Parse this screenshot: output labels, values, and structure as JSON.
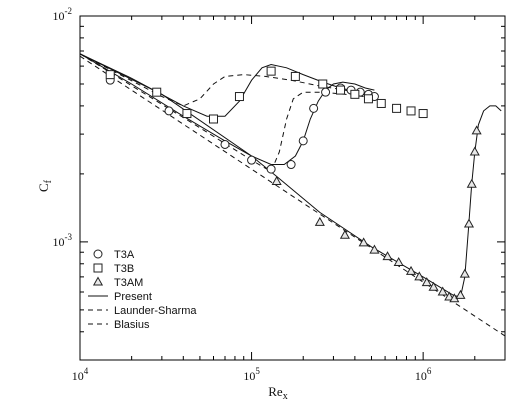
{
  "chart_data": {
    "type": "line",
    "x_scale": "log",
    "y_scale": "log",
    "xlim": [
      10000,
      3000000
    ],
    "ylim": [
      0.0003,
      0.01
    ],
    "x_ticks": [
      {
        "value": 10000,
        "base": "10",
        "exp": "4"
      },
      {
        "value": 100000,
        "base": "10",
        "exp": "5"
      },
      {
        "value": 1000000,
        "base": "10",
        "exp": "6"
      }
    ],
    "y_ticks": [
      {
        "value": 0.001,
        "base": "10",
        "exp": "-3"
      },
      {
        "value": 0.01,
        "base": "10",
        "exp": "-2"
      }
    ],
    "xlabel": {
      "main": "Re",
      "sub": "x"
    },
    "ylabel": {
      "main": "C",
      "sub": "f"
    },
    "legend_position": "bottom-left",
    "series": [
      {
        "name": "T3A",
        "kind": "markers",
        "marker": "circle",
        "points": [
          [
            15000,
            0.0052
          ],
          [
            33000,
            0.0038
          ],
          [
            70000,
            0.0027
          ],
          [
            100000,
            0.0023
          ],
          [
            130000,
            0.0021
          ],
          [
            170000,
            0.0022
          ],
          [
            200000,
            0.0028
          ],
          [
            230000,
            0.0039
          ],
          [
            270000,
            0.0046
          ],
          [
            330000,
            0.0048
          ],
          [
            380000,
            0.0047
          ],
          [
            430000,
            0.0046
          ],
          [
            480000,
            0.0045
          ],
          [
            520000,
            0.0044
          ]
        ]
      },
      {
        "name": "T3B",
        "kind": "markers",
        "marker": "square",
        "points": [
          [
            15000,
            0.0055
          ],
          [
            28000,
            0.0046
          ],
          [
            42000,
            0.0037
          ],
          [
            60000,
            0.0035
          ],
          [
            85000,
            0.0044
          ],
          [
            130000,
            0.0057
          ],
          [
            180000,
            0.0054
          ],
          [
            260000,
            0.005
          ],
          [
            330000,
            0.0047
          ],
          [
            400000,
            0.0045
          ],
          [
            480000,
            0.0043
          ],
          [
            570000,
            0.0041
          ],
          [
            700000,
            0.0039
          ],
          [
            850000,
            0.0038
          ],
          [
            1000000,
            0.0037
          ]
        ]
      },
      {
        "name": "T3AM",
        "kind": "markers",
        "marker": "triangle",
        "points": [
          [
            140000,
            0.00185
          ],
          [
            250000,
            0.00122
          ],
          [
            350000,
            0.00107
          ],
          [
            450000,
            0.00099
          ],
          [
            520000,
            0.00092
          ],
          [
            620000,
            0.00086
          ],
          [
            720000,
            0.00081
          ],
          [
            850000,
            0.00074
          ],
          [
            950000,
            0.0007
          ],
          [
            1050000,
            0.00066
          ],
          [
            1150000,
            0.00063
          ],
          [
            1300000,
            0.0006
          ],
          [
            1420000,
            0.00057
          ],
          [
            1520000,
            0.00056
          ],
          [
            1650000,
            0.00058
          ],
          [
            1750000,
            0.00072
          ],
          [
            1850000,
            0.0012
          ],
          [
            1920000,
            0.0018
          ],
          [
            2000000,
            0.0025
          ],
          [
            2050000,
            0.0031
          ]
        ]
      },
      {
        "name": "Present",
        "kind": "line",
        "dash": "solid",
        "lines": [
          [
            [
              10000,
              0.0068
            ],
            [
              20000,
              0.0053
            ],
            [
              40000,
              0.004
            ],
            [
              55000,
              0.0036
            ],
            [
              70000,
              0.0036
            ],
            [
              85000,
              0.0042
            ],
            [
              100000,
              0.0052
            ],
            [
              115000,
              0.0059
            ],
            [
              130000,
              0.0061
            ],
            [
              160000,
              0.0059
            ],
            [
              200000,
              0.0055
            ],
            [
              260000,
              0.0051
            ],
            [
              330000,
              0.0048
            ],
            [
              420000,
              0.0046
            ],
            [
              520000,
              0.0044
            ]
          ],
          [
            [
              10000,
              0.0068
            ],
            [
              20000,
              0.005
            ],
            [
              40000,
              0.0036
            ],
            [
              70000,
              0.0028
            ],
            [
              100000,
              0.0024
            ],
            [
              130000,
              0.0022
            ],
            [
              155000,
              0.0022
            ],
            [
              180000,
              0.0024
            ],
            [
              200000,
              0.0028
            ],
            [
              220000,
              0.0035
            ],
            [
              245000,
              0.0042
            ],
            [
              270000,
              0.0047
            ],
            [
              300000,
              0.005
            ],
            [
              340000,
              0.0051
            ],
            [
              400000,
              0.005
            ],
            [
              460000,
              0.0048
            ],
            [
              520000,
              0.0047
            ]
          ],
          [
            [
              10000,
              0.0068
            ],
            [
              30000,
              0.0045
            ],
            [
              100000,
              0.0024
            ],
            [
              140000,
              0.00195
            ],
            [
              250000,
              0.00135
            ],
            [
              500000,
              0.00095
            ],
            [
              1000000,
              0.0007
            ],
            [
              1500000,
              0.00058
            ],
            [
              1650000,
              0.00057
            ],
            [
              1750000,
              0.0007
            ],
            [
              1830000,
              0.0011
            ],
            [
              1920000,
              0.0018
            ],
            [
              2000000,
              0.0025
            ],
            [
              2100000,
              0.0033
            ],
            [
              2250000,
              0.0038
            ],
            [
              2450000,
              0.004
            ],
            [
              2650000,
              0.004
            ],
            [
              2850000,
              0.0038
            ]
          ]
        ]
      },
      {
        "name": "Launder-Sharma",
        "kind": "line",
        "dash": "dashed",
        "lines": [
          [
            [
              10000,
              0.0068
            ],
            [
              30000,
              0.0044
            ],
            [
              40000,
              0.004
            ],
            [
              50000,
              0.0043
            ],
            [
              60000,
              0.005
            ],
            [
              70000,
              0.0054
            ],
            [
              90000,
              0.0055
            ],
            [
              120000,
              0.0054
            ],
            [
              170000,
              0.0052
            ],
            [
              250000,
              0.0049
            ],
            [
              350000,
              0.0047
            ],
            [
              500000,
              0.0044
            ]
          ],
          [
            [
              10000,
              0.0068
            ],
            [
              50000,
              0.0032
            ],
            [
              100000,
              0.0023
            ],
            [
              130000,
              0.00205
            ],
            [
              145000,
              0.0025
            ],
            [
              160000,
              0.0035
            ],
            [
              175000,
              0.0043
            ],
            [
              200000,
              0.0046
            ],
            [
              260000,
              0.0046
            ],
            [
              350000,
              0.0045
            ],
            [
              450000,
              0.0044
            ]
          ]
        ]
      },
      {
        "name": "Blasius",
        "kind": "line",
        "dash": "dashed",
        "lines": [
          [
            [
              10000,
              0.00664
            ],
            [
              3000000,
              0.000383
            ]
          ]
        ]
      }
    ]
  }
}
